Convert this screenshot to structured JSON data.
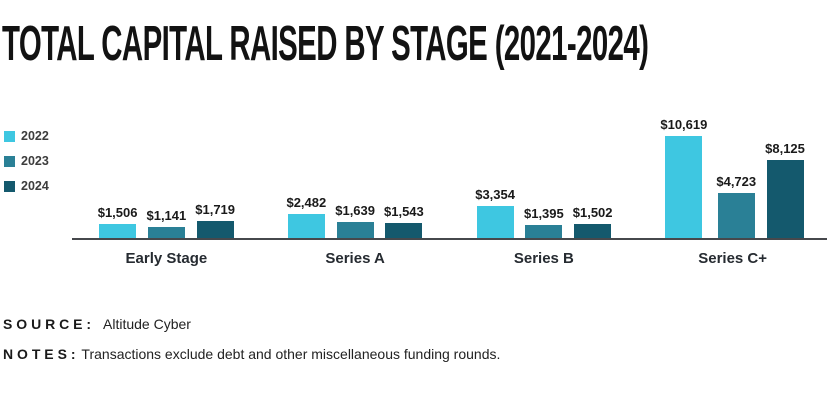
{
  "title": "TOTAL CAPITAL RAISED BY STAGE (2021-2024)",
  "legend": [
    {
      "label": "2022",
      "color": "#3EC7E1"
    },
    {
      "label": "2023",
      "color": "#2A8096"
    },
    {
      "label": "2024",
      "color": "#14596D"
    }
  ],
  "chart_data": {
    "type": "bar",
    "title": "TOTAL CAPITAL RAISED BY STAGE (2021-2024)",
    "categories": [
      "Early Stage",
      "Series A",
      "Series B",
      "Series C+"
    ],
    "series": [
      {
        "name": "2022",
        "color": "#3EC7E1",
        "values": [
          1506,
          2482,
          3354,
          10619
        ],
        "labels": [
          "$1,506",
          "$2,482",
          "$3,354",
          "$10,619"
        ]
      },
      {
        "name": "2023",
        "color": "#2A8096",
        "values": [
          1141,
          1639,
          1395,
          4723
        ],
        "labels": [
          "$1,141",
          "$1,639",
          "$1,395",
          "$4,723"
        ]
      },
      {
        "name": "2024",
        "color": "#14596D",
        "values": [
          1719,
          1543,
          1502,
          8125
        ],
        "labels": [
          "$1,719",
          "$1,543",
          "$1,502",
          "$8,125"
        ]
      }
    ],
    "xlabel": "",
    "ylabel": "",
    "ylim": [
      0,
      11000
    ],
    "grid": false,
    "legend_position": "left",
    "value_labels_shown": true
  },
  "footer": {
    "source_label": "SOURCE:",
    "source_value": "Altitude Cyber",
    "notes_label": "NOTES:",
    "notes_value": "Transactions exclude debt and other miscellaneous funding rounds."
  }
}
